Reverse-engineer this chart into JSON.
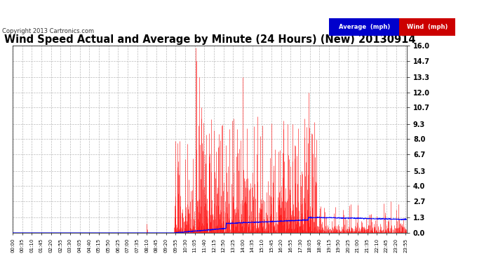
{
  "title": "Wind Speed Actual and Average by Minute (24 Hours) (New) 20130914",
  "copyright": "Copyright 2013 Cartronics.com",
  "yticks": [
    0.0,
    1.3,
    2.7,
    4.0,
    5.3,
    6.7,
    8.0,
    9.3,
    10.7,
    12.0,
    13.3,
    14.7,
    16.0
  ],
  "ylim": [
    0.0,
    16.0
  ],
  "bg_color": "#ffffff",
  "grid_color": "#bbbbbb",
  "wind_color": "#ff0000",
  "avg_color": "#0000ff",
  "title_fontsize": 10.5,
  "copyright_fontsize": 6.5,
  "legend_avg_label": "Average  (mph)",
  "legend_wind_label": "Wind  (mph)",
  "legend_avg_bg": "#0000cc",
  "legend_wind_bg": "#cc0000",
  "xtick_interval_minutes": 35,
  "seed": 42
}
